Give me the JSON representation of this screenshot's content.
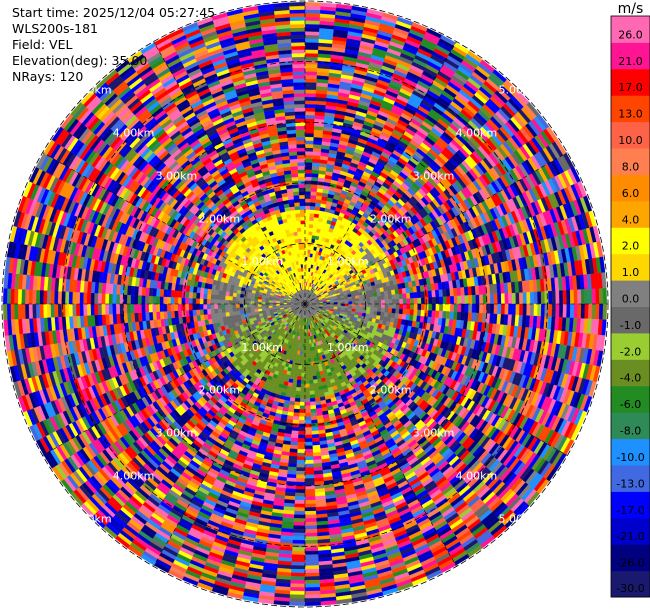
{
  "info": {
    "start_time": "Start time: 2025/12/04 05:27:45",
    "instrument": "WLS200s-181",
    "field": "Field: VEL",
    "elevation": "Elevation(deg): 35.00",
    "nrays": "NRays: 120"
  },
  "chart_data": {
    "type": "heatmap",
    "projection": "polar-ppi",
    "field": "VEL",
    "unit": "m/s",
    "nrays": 120,
    "elevation_deg": 35.0,
    "max_range_km": 5.0,
    "range_rings_km": [
      1.0,
      2.0,
      3.0,
      4.0,
      5.0
    ],
    "range_ring_labels": [
      "1.00km",
      "2.00km",
      "3.00km",
      "4.00km",
      "5.00km"
    ],
    "colorbar": {
      "boundaries": [
        -30.0,
        -26.0,
        -21.0,
        -17.0,
        -13.0,
        -10.0,
        -8.0,
        -6.0,
        -4.0,
        -2.0,
        -1.0,
        0.0,
        1.0,
        2.0,
        4.0,
        6.0,
        8.0,
        10.0,
        13.0,
        17.0,
        21.0,
        26.0
      ],
      "tick_labels": [
        "-30.0",
        "-26.0",
        "-21.0",
        "-17.0",
        "-13.0",
        "-10.0",
        "-8.0",
        "-6.0",
        "-4.0",
        "-2.0",
        "-1.0",
        "0.0",
        "1.0",
        "2.0",
        "4.0",
        "6.0",
        "8.0",
        "10.0",
        "13.0",
        "17.0",
        "21.0",
        "26.0"
      ],
      "colors": [
        "#191970",
        "#000080",
        "#0000cd",
        "#0000ff",
        "#4169e1",
        "#1e90ff",
        "#2e8b57",
        "#228b22",
        "#6b8e23",
        "#9acd32",
        "#696969",
        "#808080",
        "#ffd700",
        "#ffff00",
        "#ffa500",
        "#ff8c00",
        "#ff7f50",
        "#ff6347",
        "#ff4500",
        "#ff0000",
        "#ff1493",
        "#ff69b4"
      ]
    },
    "pattern": "near-range: approaching (negative, green) to the south, receding (positive, yellow/orange) to the north, within about 1.5 km; beyond that noisy random velocities across the full scale"
  },
  "colors": {
    "background": "#ffffff",
    "ring": "#000000",
    "ring_label": "#ffffff"
  }
}
